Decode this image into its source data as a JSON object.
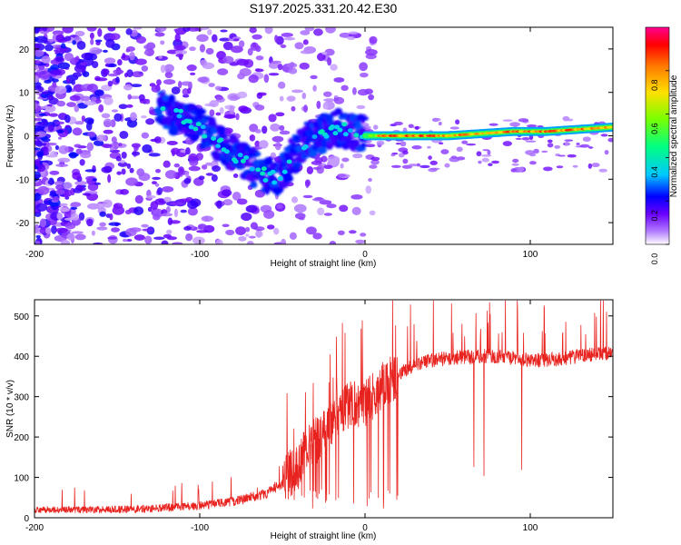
{
  "figure_title": "S197.2025.331.20.42.E30",
  "chart_data": [
    {
      "type": "heatmap",
      "title": "S197.2025.331.20.42.E30",
      "xlabel": "Height of straight line (km)",
      "ylabel": "Frequency (Hz)",
      "xlim": [
        -200,
        150
      ],
      "ylim": [
        -25,
        25
      ],
      "x_ticks": [
        -200,
        -100,
        0,
        100
      ],
      "y_ticks": [
        -20,
        -10,
        0,
        10,
        20
      ],
      "x_tick_labels": [
        "-200",
        "-100",
        "0",
        "100"
      ],
      "y_tick_labels": [
        "-20",
        "-10",
        "0",
        "10",
        "20"
      ],
      "colorbar": {
        "label": "Normalized spectral amplitude",
        "range": [
          0,
          1
        ],
        "ticks": [
          0,
          0.2,
          0.4,
          0.6,
          0.8
        ],
        "tick_labels": [
          "0.0",
          "0.2",
          "0.4",
          "0.6",
          "0.8"
        ],
        "colors": [
          "#ffffff",
          "#b27cff",
          "#6a00ff",
          "#0000ff",
          "#00c8ff",
          "#00ff80",
          "#7cff00",
          "#ffe000",
          "#ff7a00",
          "#ff0000",
          "#ff0090"
        ]
      },
      "ridge": [
        {
          "x": -122,
          "y": 6,
          "amp": 0.3
        },
        {
          "x": -110,
          "y": 4,
          "amp": 0.33
        },
        {
          "x": -100,
          "y": 2,
          "amp": 0.3
        },
        {
          "x": -90,
          "y": -1,
          "amp": 0.3
        },
        {
          "x": -80,
          "y": -4,
          "amp": 0.28
        },
        {
          "x": -70,
          "y": -7,
          "amp": 0.3
        },
        {
          "x": -60,
          "y": -9,
          "amp": 0.28
        },
        {
          "x": -52,
          "y": -10,
          "amp": 0.3
        },
        {
          "x": -45,
          "y": -5,
          "amp": 0.28
        },
        {
          "x": -38,
          "y": -2,
          "amp": 0.3
        },
        {
          "x": -30,
          "y": 0,
          "amp": 0.35
        },
        {
          "x": -22,
          "y": 1,
          "amp": 0.35
        },
        {
          "x": -15,
          "y": 2,
          "amp": 0.4
        },
        {
          "x": -8,
          "y": 1,
          "amp": 0.45
        },
        {
          "x": 0,
          "y": 0,
          "amp": 0.5
        },
        {
          "x": 10,
          "y": 0,
          "amp": 0.95
        },
        {
          "x": 30,
          "y": 0,
          "amp": 0.95
        },
        {
          "x": 50,
          "y": 0,
          "amp": 0.9
        },
        {
          "x": 70,
          "y": 0.5,
          "amp": 0.85
        },
        {
          "x": 90,
          "y": 1,
          "amp": 0.9
        },
        {
          "x": 110,
          "y": 1,
          "amp": 0.9
        },
        {
          "x": 130,
          "y": 1.5,
          "amp": 0.9
        },
        {
          "x": 150,
          "y": 2,
          "amp": 0.9
        }
      ]
    },
    {
      "type": "line",
      "title": "",
      "xlabel": "Height of straight line (km)",
      "ylabel": "SNR (10 * v/v)",
      "xlim": [
        -200,
        150
      ],
      "ylim": [
        0,
        540
      ],
      "x_ticks": [
        -200,
        -100,
        0,
        100
      ],
      "y_ticks": [
        0,
        100,
        200,
        300,
        400,
        500
      ],
      "x_tick_labels": [
        "-200",
        "-100",
        "0",
        "100"
      ],
      "y_tick_labels": [
        "0",
        "100",
        "200",
        "300",
        "400",
        "500"
      ],
      "series": [
        {
          "name": "SNR",
          "color": "#e8231f",
          "x": [
            -200,
            -150,
            -120,
            -100,
            -80,
            -70,
            -60,
            -50,
            -45,
            -40,
            -35,
            -30,
            -25,
            -20,
            -15,
            -10,
            -5,
            0,
            10,
            20,
            30,
            40,
            50,
            60,
            70,
            80,
            90,
            100,
            110,
            120,
            130,
            140,
            150
          ],
          "values": [
            20,
            20,
            25,
            30,
            40,
            50,
            60,
            85,
            110,
            140,
            170,
            190,
            215,
            235,
            260,
            275,
            285,
            280,
            325,
            355,
            380,
            390,
            395,
            398,
            400,
            400,
            395,
            390,
            390,
            395,
            400,
            405,
            410
          ]
        }
      ]
    }
  ]
}
